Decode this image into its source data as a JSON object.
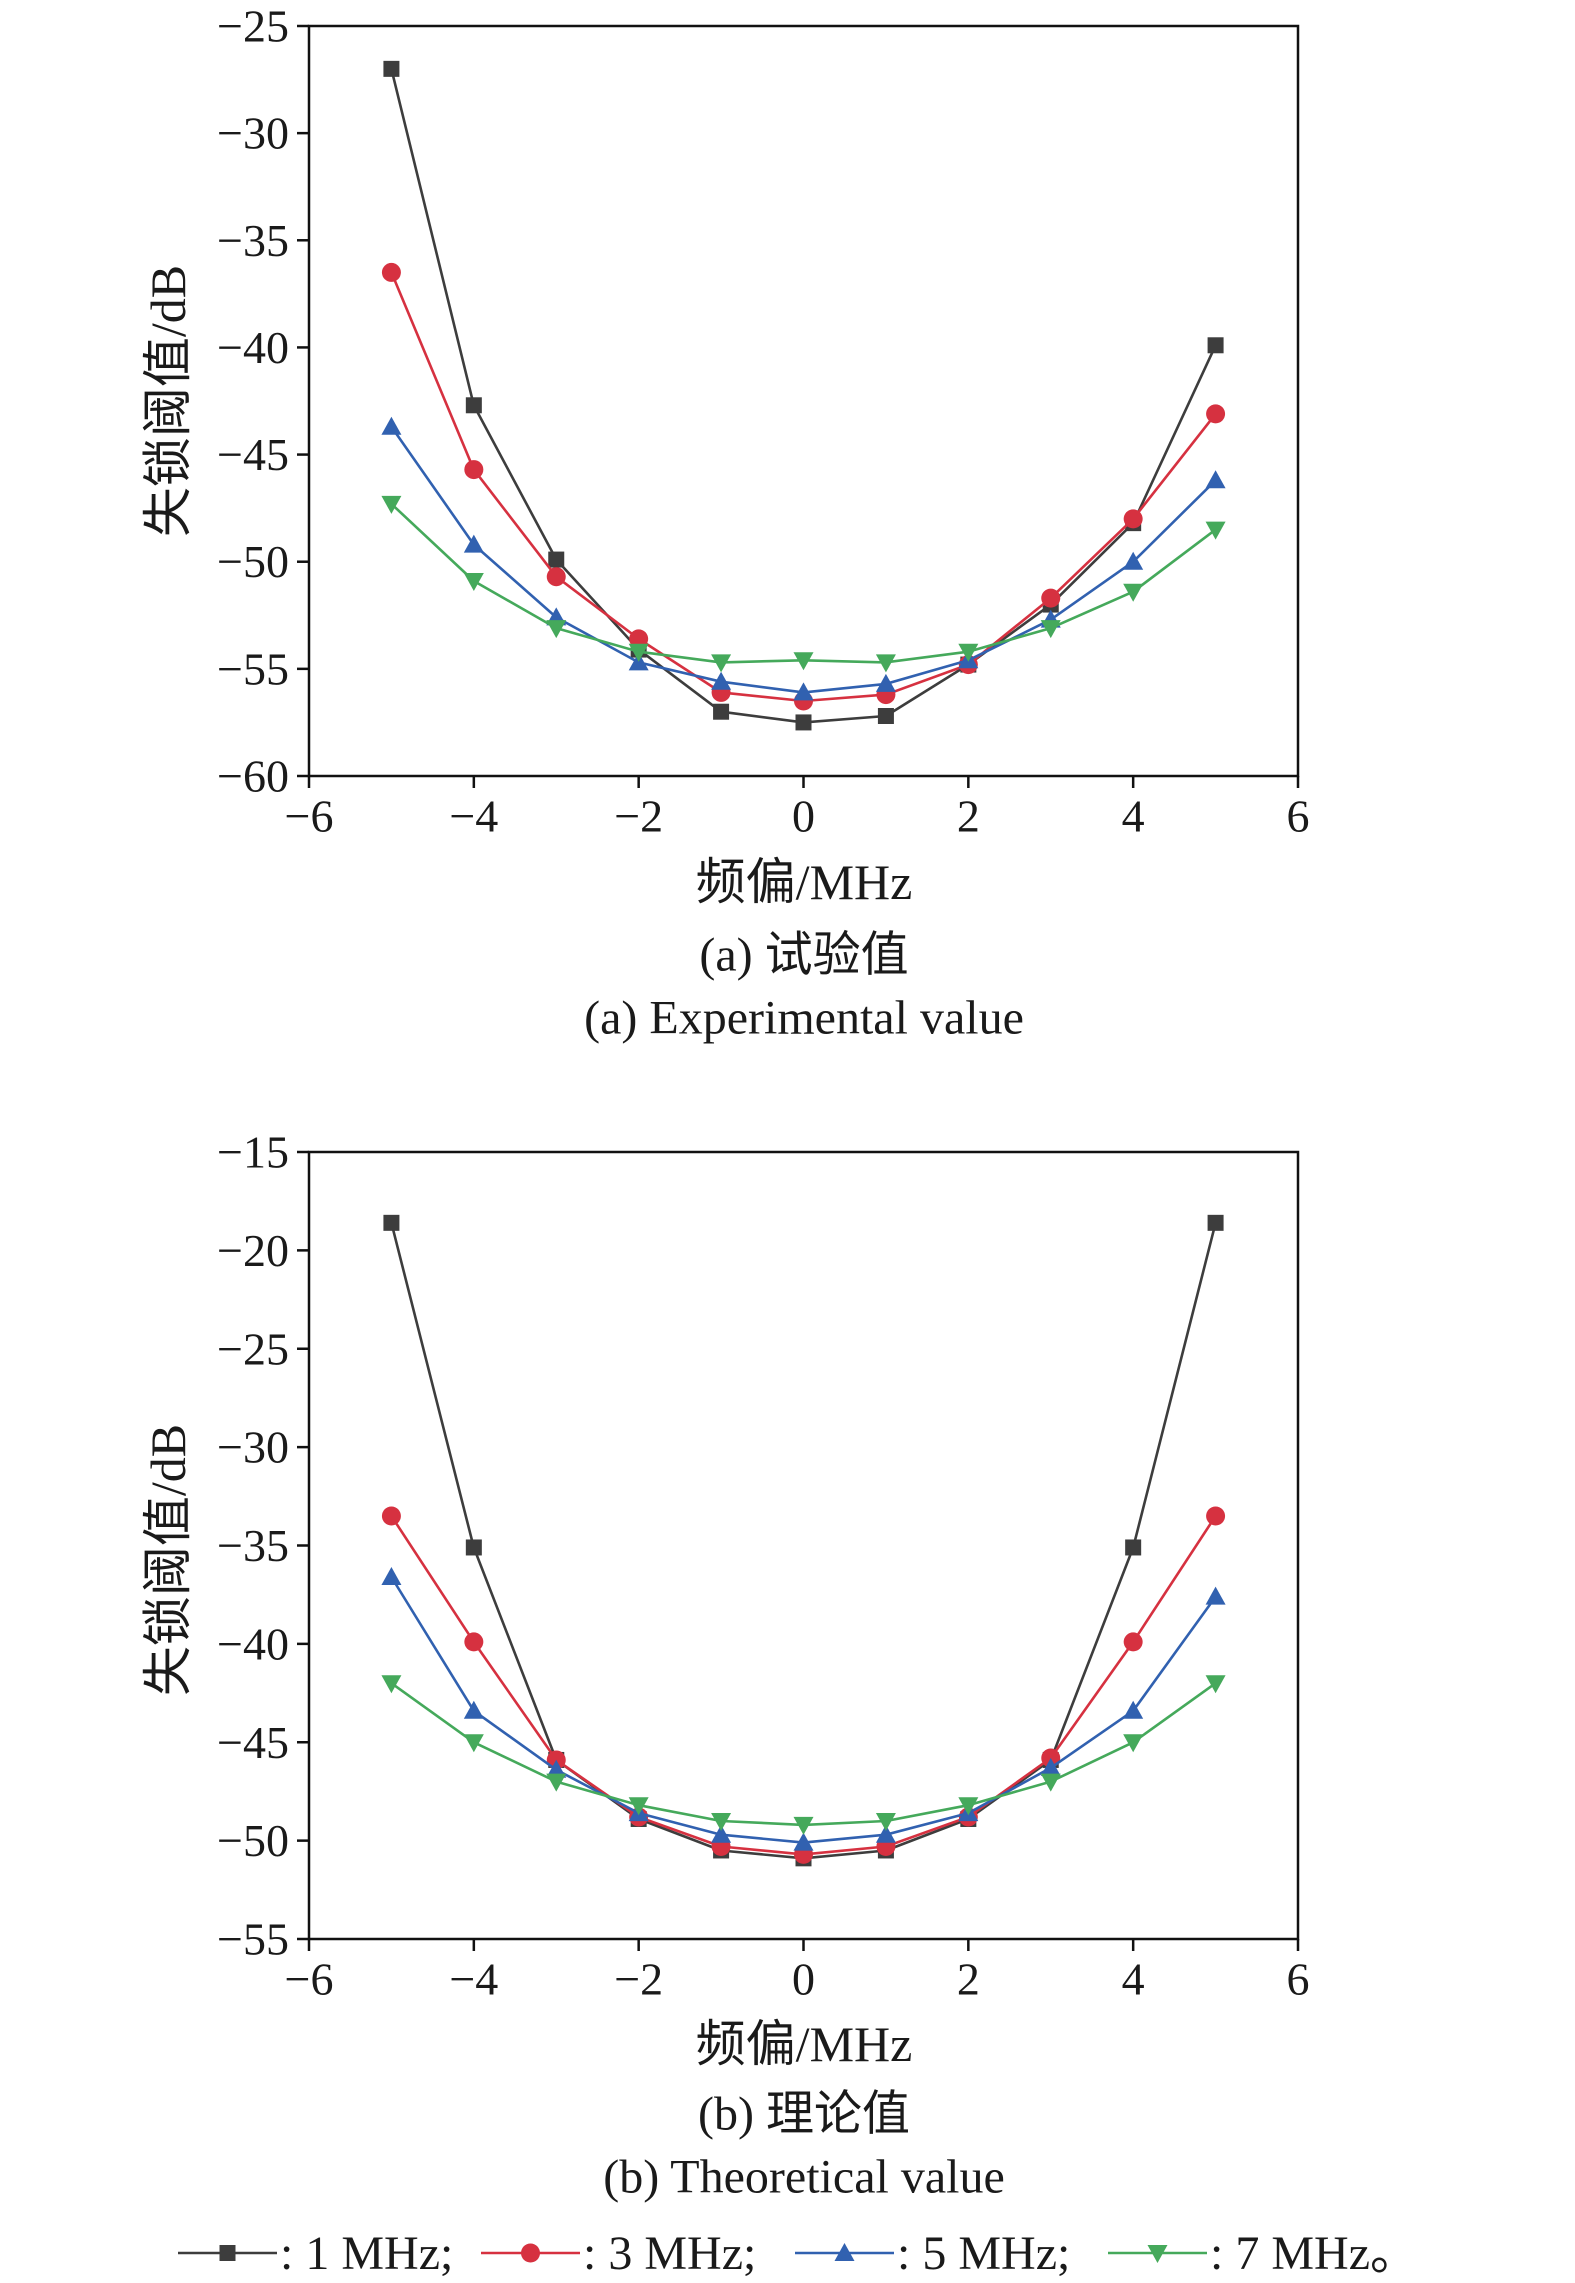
{
  "chart_data": [
    {
      "type": "line",
      "x": [
        -5,
        -4,
        -3,
        -2,
        -1,
        0,
        1,
        2,
        3,
        4,
        5
      ],
      "xlim": [
        -6,
        6
      ],
      "ylim": [
        -60,
        -25
      ],
      "xticks": [
        "−6",
        "−4",
        "−2",
        "0",
        "2",
        "4",
        "6"
      ],
      "yticks": [
        "−60",
        "−55",
        "−50",
        "−45",
        "−40",
        "−35",
        "−30",
        "−25"
      ],
      "xlabel": "频偏/MHz",
      "ylabel": "失锁阈值/dB",
      "caption": "(a) 试验值",
      "caption_en": "(a) Experimental value",
      "grid": false,
      "series": [
        {
          "name": "1 MHz",
          "color": "#3d3d3d",
          "marker": "square",
          "values": [
            -27.0,
            -42.7,
            -49.9,
            -54.1,
            -57.0,
            -57.5,
            -57.2,
            -54.8,
            -52.0,
            -48.2,
            -39.9
          ]
        },
        {
          "name": "3 MHz",
          "color": "#d63140",
          "marker": "circle",
          "values": [
            -36.5,
            -45.7,
            -50.7,
            -53.6,
            -56.1,
            -56.5,
            -56.2,
            -54.8,
            -51.7,
            -48.0,
            -43.1
          ]
        },
        {
          "name": "5 MHz",
          "color": "#3161b0",
          "marker": "triangle-up",
          "values": [
            -43.7,
            -49.2,
            -52.6,
            -54.7,
            -55.6,
            -56.1,
            -55.7,
            -54.6,
            -52.7,
            -50.0,
            -46.2
          ]
        },
        {
          "name": "7 MHz",
          "color": "#45a95b",
          "marker": "triangle-down",
          "values": [
            -47.3,
            -50.9,
            -53.1,
            -54.2,
            -54.7,
            -54.6,
            -54.7,
            -54.2,
            -53.1,
            -51.4,
            -48.5
          ]
        }
      ]
    },
    {
      "type": "line",
      "x": [
        -5,
        -4,
        -3,
        -2,
        -1,
        0,
        1,
        2,
        3,
        4,
        5
      ],
      "xlim": [
        -6,
        6
      ],
      "ylim": [
        -55,
        -15
      ],
      "xticks": [
        "−6",
        "−4",
        "−2",
        "0",
        "2",
        "4",
        "6"
      ],
      "yticks": [
        "−55",
        "−50",
        "−45",
        "−40",
        "−35",
        "−30",
        "−25",
        "−20",
        "−15"
      ],
      "xlabel": "频偏/MHz",
      "ylabel": "失锁阈值/dB",
      "caption": "(b) 理论值",
      "caption_en": "(b) Theoretical value",
      "grid": false,
      "series": [
        {
          "name": "1 MHz",
          "color": "#3d3d3d",
          "marker": "square",
          "values": [
            -18.6,
            -35.1,
            -45.9,
            -48.9,
            -50.5,
            -50.9,
            -50.5,
            -48.9,
            -45.9,
            -35.1,
            -18.6
          ]
        },
        {
          "name": "3 MHz",
          "color": "#d63140",
          "marker": "circle",
          "values": [
            -33.5,
            -39.9,
            -45.9,
            -48.8,
            -50.3,
            -50.7,
            -50.3,
            -48.8,
            -45.8,
            -39.9,
            -33.5
          ]
        },
        {
          "name": "5 MHz",
          "color": "#3161b0",
          "marker": "triangle-up",
          "values": [
            -36.6,
            -43.4,
            -46.4,
            -48.6,
            -49.7,
            -50.1,
            -49.7,
            -48.6,
            -46.3,
            -43.4,
            -37.6
          ]
        },
        {
          "name": "7 MHz",
          "color": "#45a95b",
          "marker": "triangle-down",
          "values": [
            -42.0,
            -45.0,
            -47.0,
            -48.2,
            -49.0,
            -49.2,
            -49.0,
            -48.2,
            -47.0,
            -45.0,
            -42.0
          ]
        }
      ]
    }
  ],
  "legend": {
    "placement": "bottom",
    "separator": ": ",
    "terminators": [
      ";",
      ";",
      ";",
      "。"
    ]
  }
}
